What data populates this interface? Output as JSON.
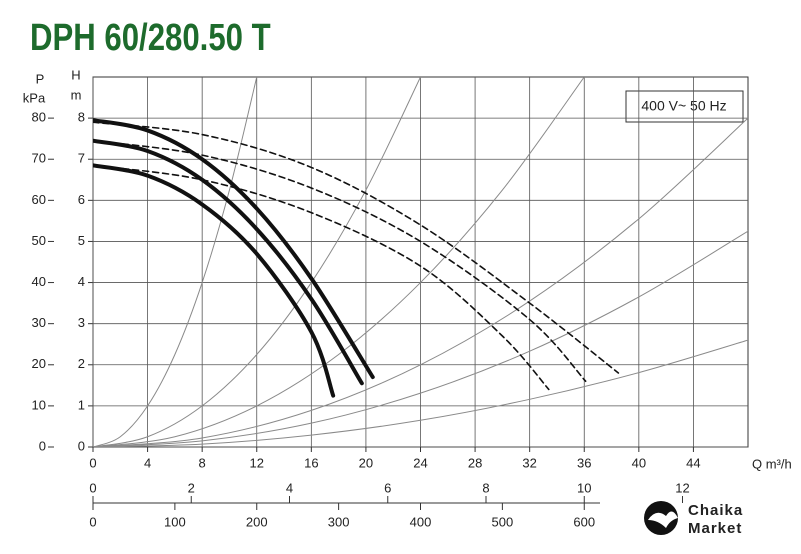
{
  "chart_data": {
    "type": "line",
    "title": "DPH 60/280.50 T",
    "annotation": "400 V~ 50 Hz",
    "x_label": "Q m³/h",
    "y_label": [
      "H",
      "m"
    ],
    "y2_label": [
      "P",
      "kPa"
    ],
    "xlim": [
      0,
      48
    ],
    "xticks": [
      0,
      4,
      8,
      12,
      16,
      20,
      24,
      28,
      32,
      36,
      40,
      44
    ],
    "ylim": [
      0,
      9
    ],
    "yticks": [
      0,
      1,
      2,
      3,
      4,
      5,
      6,
      7,
      8
    ],
    "y2lim": [
      0,
      90
    ],
    "y2ticks": [
      0,
      10,
      20,
      30,
      40,
      50,
      60,
      70,
      80
    ],
    "x2lim": [
      0,
      13.333
    ],
    "x2ticks": [
      0,
      2,
      4,
      6,
      8,
      10,
      12
    ],
    "x3lim": [
      0,
      800
    ],
    "x3ticks": [
      0,
      100,
      200,
      300,
      400,
      500,
      600
    ],
    "grid": true,
    "series": [
      {
        "style": "thin",
        "color": "#8a8a8a",
        "x": [
          0,
          2,
          4,
          6,
          8,
          10,
          12
        ],
        "values": [
          0,
          0.25,
          1,
          2.25,
          4,
          6.25,
          9
        ]
      },
      {
        "style": "thin",
        "color": "#8a8a8a",
        "x": [
          0,
          4,
          8,
          12,
          16,
          20,
          24
        ],
        "values": [
          0,
          0.25,
          1,
          2.25,
          4,
          6.25,
          9
        ]
      },
      {
        "style": "thin",
        "color": "#8a8a8a",
        "x": [
          0,
          6,
          12,
          18,
          24,
          30,
          36
        ],
        "values": [
          0,
          0.25,
          1,
          2.25,
          4,
          6.25,
          9
        ]
      },
      {
        "style": "thin",
        "color": "#8a8a8a",
        "x": [
          0,
          8,
          16,
          24,
          32,
          40,
          48
        ],
        "values": [
          0,
          0.22,
          0.89,
          2,
          3.55,
          5.55,
          8
        ]
      },
      {
        "style": "thin",
        "color": "#8a8a8a",
        "x": [
          0,
          8,
          16,
          24,
          32,
          40,
          48
        ],
        "values": [
          0,
          0.15,
          0.58,
          1.31,
          2.33,
          3.65,
          5.25
        ]
      },
      {
        "style": "thin",
        "color": "#8a8a8a",
        "x": [
          0,
          8,
          16,
          24,
          32,
          40,
          48
        ],
        "values": [
          0,
          0.07,
          0.29,
          0.65,
          1.16,
          1.81,
          2.6
        ]
      },
      {
        "style": "dashed",
        "color": "#111111",
        "x": [
          0,
          8,
          16,
          24,
          32,
          38.5
        ],
        "values": [
          7.9,
          7.6,
          6.8,
          5.4,
          3.5,
          1.8
        ]
      },
      {
        "style": "dashed",
        "color": "#111111",
        "x": [
          0,
          8,
          16,
          24,
          32,
          36.1
        ],
        "values": [
          7.45,
          7.1,
          6.3,
          5.0,
          3.1,
          1.6
        ]
      },
      {
        "style": "dashed",
        "color": "#111111",
        "x": [
          0,
          8,
          16,
          24,
          30,
          33.4
        ],
        "values": [
          6.85,
          6.5,
          5.7,
          4.4,
          2.7,
          1.4
        ]
      },
      {
        "style": "solid",
        "color": "#111111",
        "x": [
          0,
          4,
          8,
          12,
          16,
          20.5
        ],
        "values": [
          7.95,
          7.7,
          7.0,
          5.8,
          4.1,
          1.7
        ]
      },
      {
        "style": "solid",
        "color": "#111111",
        "x": [
          0,
          4,
          8,
          12,
          16,
          19.7
        ],
        "values": [
          7.45,
          7.2,
          6.5,
          5.3,
          3.6,
          1.55
        ]
      },
      {
        "style": "solid",
        "color": "#111111",
        "x": [
          0,
          4,
          8,
          12,
          16,
          17.6
        ],
        "values": [
          6.85,
          6.6,
          5.9,
          4.7,
          2.8,
          1.25
        ]
      }
    ]
  },
  "watermark": {
    "line1": "Chaika",
    "line2": "Market"
  }
}
